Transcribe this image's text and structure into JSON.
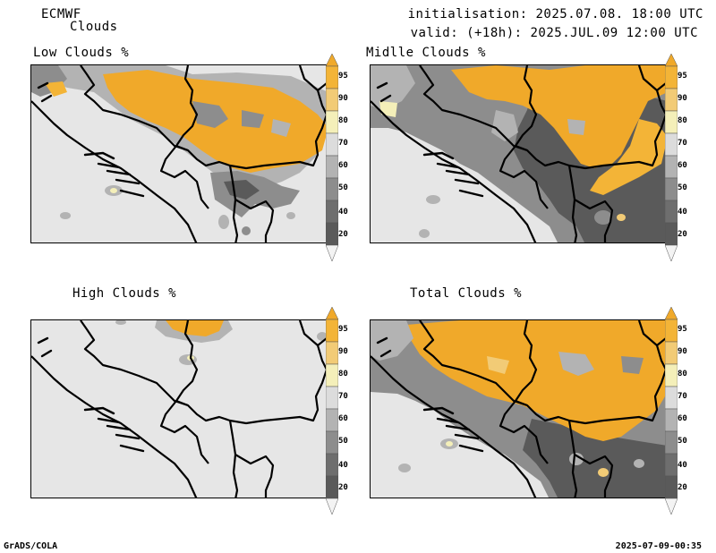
{
  "header": {
    "model": "ECMWF",
    "product": "Clouds",
    "initialisation": "initialisation: 2025.07.08. 18:00 UTC",
    "valid": "valid: (+18h): 2025.JUL.09 12:00 UTC"
  },
  "panels": {
    "low": {
      "title": "Low Clouds %"
    },
    "middle": {
      "title": "Midlle Clouds %"
    },
    "high": {
      "title": "High Clouds %"
    },
    "total": {
      "title": "Total Clouds %"
    }
  },
  "colorbar": {
    "levels": [
      "95",
      "90",
      "80",
      "70",
      "60",
      "50",
      "40",
      "20"
    ],
    "colors": {
      "above95": "#f0a92a",
      "c90_95": "#f3b437",
      "c80_90": "#f2cb76",
      "c70_80": "#f4efb9",
      "c60_70": "#dcdcdc",
      "c50_60": "#b3b3b3",
      "c40_50": "#8d8d8d",
      "c20_40": "#5a5a5a",
      "below20": "#f3f3f3"
    }
  },
  "footer": {
    "left": "GrADS/COLA",
    "right": "2025-07-09-00:35"
  }
}
